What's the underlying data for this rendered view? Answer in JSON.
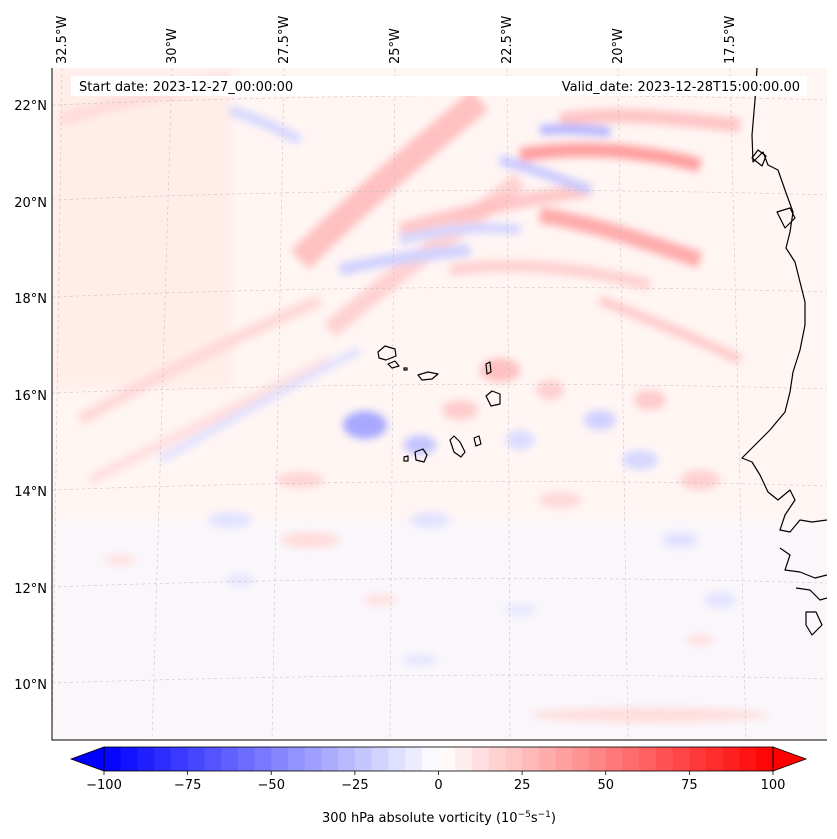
{
  "header": {
    "start_date": "Start date: 2023-12-27_00:00:00",
    "valid_date": "Valid_date: 2023-12-28T15:00:00.00"
  },
  "longitude_labels": [
    "32.5°W",
    "30°W",
    "27.5°W",
    "25°W",
    "22.5°W",
    "20°W",
    "17.5°W"
  ],
  "latitude_labels": [
    "22°N",
    "20°N",
    "18°N",
    "16°N",
    "14°N",
    "12°N",
    "10°N"
  ],
  "colorbar": {
    "label": "300 hPa absolute vorticity (10",
    "label_exp1": "−5",
    "label_mid": "s",
    "label_exp2": "−1",
    "label_end": ")",
    "ticks": [
      "−100",
      "−75",
      "−50",
      "−25",
      "0",
      "25",
      "50",
      "75",
      "100"
    ],
    "vmin": -100,
    "vmax": 100,
    "step": 5,
    "color_low": "#0000ff",
    "color_mid": "#ffffff",
    "color_high": "#ff0000"
  },
  "colors": {
    "coastline": "#000000",
    "background_tint": "#fff6f4"
  }
}
